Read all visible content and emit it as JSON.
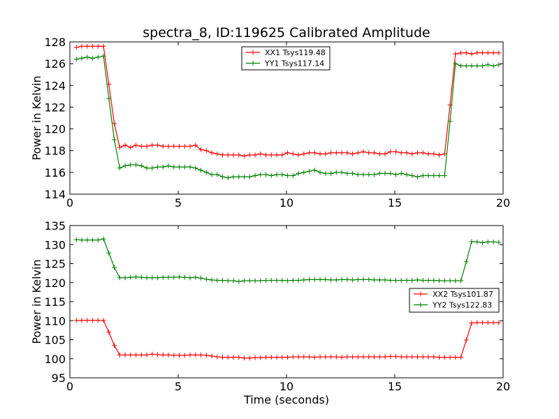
{
  "chart_data": [
    {
      "type": "line",
      "title": "spectra_8, ID:119625 Calibrated Amplitude",
      "xlabel": "",
      "ylabel": "Power in Kelvin",
      "xlim": [
        0,
        20
      ],
      "ylim": [
        114,
        128
      ],
      "xticks": [
        "0",
        "5",
        "10",
        "15",
        "20"
      ],
      "yticks": [
        "114",
        "116",
        "118",
        "120",
        "122",
        "124",
        "126",
        "128"
      ],
      "legend_position": "upper-center",
      "grid": false,
      "series": [
        {
          "name": "XX1 Tsys119.48",
          "color": "#ff0000",
          "x": [
            0.3,
            0.55,
            0.8,
            1.05,
            1.3,
            1.55,
            1.8,
            2.05,
            2.3,
            2.55,
            2.8,
            3.05,
            3.3,
            3.55,
            3.8,
            4.05,
            4.3,
            4.55,
            4.8,
            5.05,
            5.3,
            5.55,
            5.8,
            6.05,
            6.3,
            6.55,
            6.8,
            7.05,
            7.3,
            7.55,
            7.8,
            8.05,
            8.3,
            8.55,
            8.8,
            9.05,
            9.3,
            9.55,
            9.8,
            10.05,
            10.3,
            10.55,
            10.8,
            11.05,
            11.3,
            11.55,
            11.8,
            12.05,
            12.3,
            12.55,
            12.8,
            13.05,
            13.3,
            13.55,
            13.8,
            14.05,
            14.3,
            14.55,
            14.8,
            15.05,
            15.3,
            15.55,
            15.8,
            16.05,
            16.3,
            16.55,
            16.8,
            17.05,
            17.3,
            17.55,
            17.8,
            18.05,
            18.3,
            18.55,
            18.8,
            19.05,
            19.3,
            19.55,
            19.8
          ],
          "y": [
            127.5,
            127.6,
            127.6,
            127.6,
            127.6,
            127.6,
            124.1,
            120.5,
            118.3,
            118.5,
            118.3,
            118.5,
            118.4,
            118.4,
            118.5,
            118.5,
            118.4,
            118.4,
            118.4,
            118.4,
            118.4,
            118.4,
            118.5,
            118.1,
            118.0,
            117.8,
            117.7,
            117.6,
            117.6,
            117.6,
            117.6,
            117.5,
            117.6,
            117.6,
            117.7,
            117.6,
            117.6,
            117.6,
            117.6,
            117.8,
            117.7,
            117.6,
            117.7,
            117.8,
            117.8,
            117.7,
            117.7,
            117.8,
            117.8,
            117.8,
            117.8,
            117.7,
            117.8,
            117.9,
            117.8,
            117.8,
            117.7,
            117.7,
            117.9,
            117.9,
            117.8,
            117.8,
            117.7,
            117.8,
            117.8,
            117.7,
            117.7,
            117.6,
            117.7,
            122.2,
            126.9,
            127.0,
            127.0,
            126.9,
            127.0,
            127.0,
            127.0,
            127.0,
            127.0
          ],
          "legend_label": "XX1 Tsys119.48"
        },
        {
          "name": "YY1 Tsys117.14",
          "color": "#008000",
          "x": [
            0.3,
            0.55,
            0.8,
            1.05,
            1.3,
            1.55,
            1.8,
            2.05,
            2.3,
            2.55,
            2.8,
            3.05,
            3.3,
            3.55,
            3.8,
            4.05,
            4.3,
            4.55,
            4.8,
            5.05,
            5.3,
            5.55,
            5.8,
            6.05,
            6.3,
            6.55,
            6.8,
            7.05,
            7.3,
            7.55,
            7.8,
            8.05,
            8.3,
            8.55,
            8.8,
            9.05,
            9.3,
            9.55,
            9.8,
            10.05,
            10.3,
            10.55,
            10.8,
            11.05,
            11.3,
            11.55,
            11.8,
            12.05,
            12.3,
            12.55,
            12.8,
            13.05,
            13.3,
            13.55,
            13.8,
            14.05,
            14.3,
            14.55,
            14.8,
            15.05,
            15.3,
            15.55,
            15.8,
            16.05,
            16.3,
            16.55,
            16.8,
            17.05,
            17.3,
            17.55,
            17.8,
            18.05,
            18.3,
            18.55,
            18.8,
            19.05,
            19.3,
            19.55,
            19.8
          ],
          "y": [
            126.4,
            126.5,
            126.6,
            126.5,
            126.6,
            126.7,
            122.8,
            119.0,
            116.4,
            116.6,
            116.7,
            116.7,
            116.6,
            116.4,
            116.4,
            116.5,
            116.5,
            116.6,
            116.5,
            116.5,
            116.5,
            116.5,
            116.4,
            116.2,
            116.0,
            115.8,
            115.8,
            115.6,
            115.5,
            115.6,
            115.6,
            115.6,
            115.6,
            115.7,
            115.8,
            115.8,
            115.7,
            115.8,
            115.8,
            115.7,
            115.7,
            115.9,
            116.0,
            116.1,
            116.2,
            116.0,
            115.9,
            115.9,
            116.0,
            116.0,
            115.9,
            115.9,
            115.8,
            115.8,
            115.8,
            115.8,
            115.9,
            115.9,
            115.9,
            115.8,
            115.9,
            115.8,
            115.7,
            115.6,
            115.7,
            115.7,
            115.7,
            115.7,
            115.7,
            120.7,
            126.0,
            125.8,
            125.8,
            125.8,
            125.8,
            125.8,
            125.9,
            125.8,
            125.9
          ],
          "legend_label": "YY1 Tsys117.14"
        }
      ]
    },
    {
      "type": "line",
      "title": "",
      "xlabel": "Time (seconds)",
      "ylabel": "Power in Kelvin",
      "xlim": [
        0,
        20
      ],
      "ylim": [
        95,
        135
      ],
      "xticks": [
        "0",
        "5",
        "10",
        "15",
        "20"
      ],
      "yticks": [
        "95",
        "100",
        "105",
        "110",
        "115",
        "120",
        "125",
        "130",
        "135"
      ],
      "legend_position": "center-right",
      "grid": false,
      "series": [
        {
          "name": "XX2 Tsys101.87",
          "color": "#ff0000",
          "x": [
            0.3,
            0.55,
            0.8,
            1.05,
            1.3,
            1.55,
            1.8,
            2.05,
            2.3,
            2.55,
            2.8,
            3.05,
            3.3,
            3.55,
            3.8,
            4.05,
            4.3,
            4.55,
            4.8,
            5.05,
            5.3,
            5.55,
            5.8,
            6.05,
            6.3,
            6.55,
            6.8,
            7.05,
            7.3,
            7.55,
            7.8,
            8.05,
            8.3,
            8.55,
            8.8,
            9.05,
            9.3,
            9.55,
            9.8,
            10.05,
            10.3,
            10.55,
            10.8,
            11.05,
            11.3,
            11.55,
            11.8,
            12.05,
            12.3,
            12.55,
            12.8,
            13.05,
            13.3,
            13.55,
            13.8,
            14.05,
            14.3,
            14.55,
            14.8,
            15.05,
            15.3,
            15.55,
            15.8,
            16.05,
            16.3,
            16.55,
            16.8,
            17.05,
            17.3,
            17.55,
            17.8,
            18.05,
            18.3,
            18.55,
            18.8,
            19.05,
            19.3,
            19.55,
            19.8
          ],
          "y": [
            110.1,
            110.1,
            110.1,
            110.1,
            110.1,
            110.1,
            107.0,
            103.5,
            101.0,
            101.0,
            101.0,
            101.0,
            101.0,
            101.0,
            101.2,
            101.1,
            101.0,
            101.0,
            100.9,
            100.9,
            100.9,
            101.0,
            101.0,
            101.0,
            100.9,
            100.7,
            100.5,
            100.4,
            100.4,
            100.4,
            100.4,
            100.2,
            100.2,
            100.3,
            100.3,
            100.4,
            100.4,
            100.4,
            100.4,
            100.4,
            100.5,
            100.5,
            100.5,
            100.5,
            100.4,
            100.5,
            100.5,
            100.5,
            100.5,
            100.4,
            100.5,
            100.5,
            100.5,
            100.5,
            100.5,
            100.5,
            100.5,
            100.5,
            100.6,
            100.6,
            100.5,
            100.5,
            100.5,
            100.5,
            100.5,
            100.5,
            100.5,
            100.4,
            100.4,
            100.4,
            100.4,
            100.4,
            104.9,
            109.4,
            109.5,
            109.5,
            109.5,
            109.5,
            109.5
          ],
          "legend_label": "XX2 Tsys101.87"
        },
        {
          "name": "YY2 Tsys122.83",
          "color": "#008000",
          "x": [
            0.3,
            0.55,
            0.8,
            1.05,
            1.3,
            1.55,
            1.8,
            2.05,
            2.3,
            2.55,
            2.8,
            3.05,
            3.3,
            3.55,
            3.8,
            4.05,
            4.3,
            4.55,
            4.8,
            5.05,
            5.3,
            5.55,
            5.8,
            6.05,
            6.3,
            6.55,
            6.8,
            7.05,
            7.3,
            7.55,
            7.8,
            8.05,
            8.3,
            8.55,
            8.8,
            9.05,
            9.3,
            9.55,
            9.8,
            10.05,
            10.3,
            10.55,
            10.8,
            11.05,
            11.3,
            11.55,
            11.8,
            12.05,
            12.3,
            12.55,
            12.8,
            13.05,
            13.3,
            13.55,
            13.8,
            14.05,
            14.3,
            14.55,
            14.8,
            15.05,
            15.3,
            15.55,
            15.8,
            16.05,
            16.3,
            16.55,
            16.8,
            17.05,
            17.3,
            17.55,
            17.8,
            18.05,
            18.3,
            18.55,
            18.8,
            19.05,
            19.3,
            19.55,
            19.8
          ],
          "y": [
            131.3,
            131.2,
            131.2,
            131.2,
            131.2,
            131.5,
            127.8,
            124.0,
            121.3,
            121.3,
            121.4,
            121.5,
            121.4,
            121.3,
            121.3,
            121.3,
            121.4,
            121.4,
            121.4,
            121.5,
            121.4,
            121.3,
            121.4,
            121.2,
            120.9,
            120.7,
            120.6,
            120.6,
            120.5,
            120.5,
            120.3,
            120.5,
            120.5,
            120.5,
            120.5,
            120.6,
            120.6,
            120.6,
            120.6,
            120.5,
            120.6,
            120.6,
            120.7,
            120.8,
            120.8,
            120.8,
            120.8,
            120.7,
            120.7,
            120.8,
            120.8,
            120.7,
            120.8,
            120.8,
            120.8,
            120.7,
            120.7,
            120.7,
            120.6,
            120.6,
            120.6,
            120.6,
            120.6,
            120.7,
            120.6,
            120.6,
            120.6,
            120.5,
            120.5,
            120.5,
            120.5,
            120.5,
            125.5,
            130.8,
            130.7,
            130.5,
            130.7,
            130.7,
            130.6
          ],
          "legend_label": "YY2 Tsys122.83"
        }
      ]
    }
  ]
}
